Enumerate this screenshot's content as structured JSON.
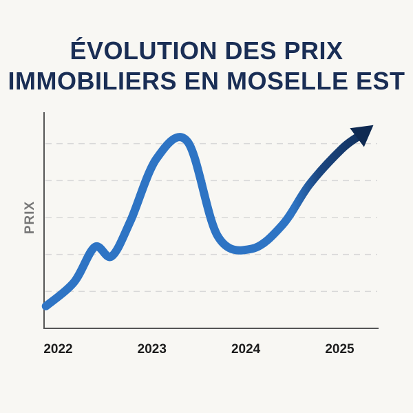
{
  "chart_data": {
    "type": "line",
    "title_lines": [
      "ÉVOLUTION DES PRIX",
      "IMMOBILIERS EN MOSELLE EST"
    ],
    "xlabel": "",
    "ylabel": "PRIX",
    "x_ticks": [
      "2022",
      "2023",
      "2024",
      "2025"
    ],
    "y_ticks_shown": false,
    "grid": "horizontal dashed",
    "ylim": [
      0,
      6
    ],
    "xlim": [
      2021.85,
      2025.4
    ],
    "series": [
      {
        "x": [
          2021.87,
          2022.17,
          2022.39,
          2022.57,
          2022.77,
          2023.05,
          2023.38,
          2023.7,
          2024.06,
          2024.39,
          2024.68,
          2025.02,
          2025.36
        ],
        "y": [
          0.6,
          1.25,
          2.2,
          1.95,
          2.9,
          4.6,
          5.05,
          2.5,
          2.15,
          2.8,
          3.9,
          4.85,
          5.5
        ]
      }
    ],
    "colors": {
      "line": "#2e74c4",
      "trend_end": "#0f2a52",
      "axis": "#555555",
      "grid": "#d8d8d8"
    }
  }
}
